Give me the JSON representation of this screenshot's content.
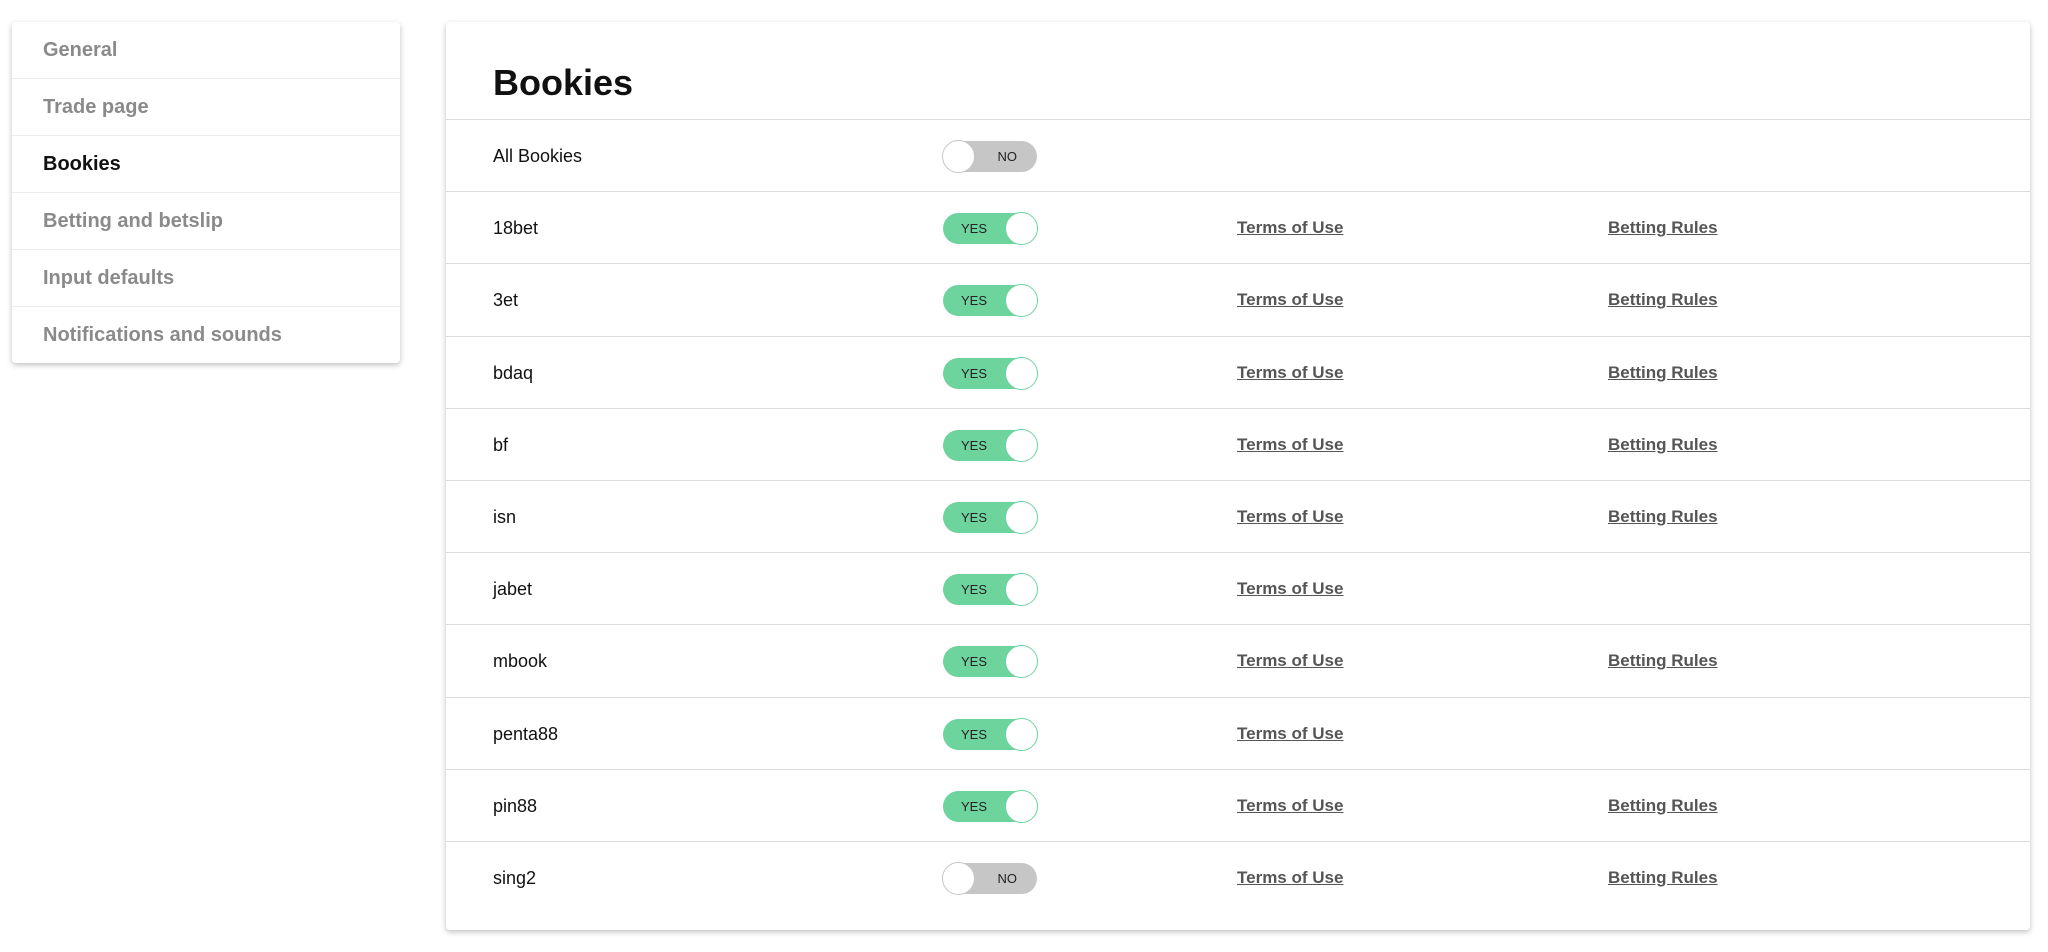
{
  "sidebar": {
    "items": [
      {
        "label": "General",
        "active": false
      },
      {
        "label": "Trade page",
        "active": false
      },
      {
        "label": "Bookies",
        "active": true
      },
      {
        "label": "Betting and betslip",
        "active": false
      },
      {
        "label": "Input defaults",
        "active": false
      },
      {
        "label": "Notifications and sounds",
        "active": false
      }
    ]
  },
  "main": {
    "title": "Bookies",
    "colors": {
      "toggle_on": "#6dd49e",
      "toggle_off": "#c6c6c6"
    },
    "rows": [
      {
        "name": "All Bookies",
        "enabled": false,
        "toggle_label": "NO",
        "terms": "",
        "rules": ""
      },
      {
        "name": "18bet",
        "enabled": true,
        "toggle_label": "YES",
        "terms": "Terms of Use",
        "rules": "Betting Rules"
      },
      {
        "name": "3et",
        "enabled": true,
        "toggle_label": "YES",
        "terms": "Terms of Use",
        "rules": "Betting Rules"
      },
      {
        "name": "bdaq",
        "enabled": true,
        "toggle_label": "YES",
        "terms": "Terms of Use",
        "rules": "Betting Rules"
      },
      {
        "name": "bf",
        "enabled": true,
        "toggle_label": "YES",
        "terms": "Terms of Use",
        "rules": "Betting Rules"
      },
      {
        "name": "isn",
        "enabled": true,
        "toggle_label": "YES",
        "terms": "Terms of Use",
        "rules": "Betting Rules"
      },
      {
        "name": "jabet",
        "enabled": true,
        "toggle_label": "YES",
        "terms": "Terms of Use",
        "rules": ""
      },
      {
        "name": "mbook",
        "enabled": true,
        "toggle_label": "YES",
        "terms": "Terms of Use",
        "rules": "Betting Rules"
      },
      {
        "name": "penta88",
        "enabled": true,
        "toggle_label": "YES",
        "terms": "Terms of Use",
        "rules": ""
      },
      {
        "name": "pin88",
        "enabled": true,
        "toggle_label": "YES",
        "terms": "Terms of Use",
        "rules": "Betting Rules"
      },
      {
        "name": "sing2",
        "enabled": false,
        "toggle_label": "NO",
        "terms": "Terms of Use",
        "rules": "Betting Rules"
      }
    ]
  }
}
